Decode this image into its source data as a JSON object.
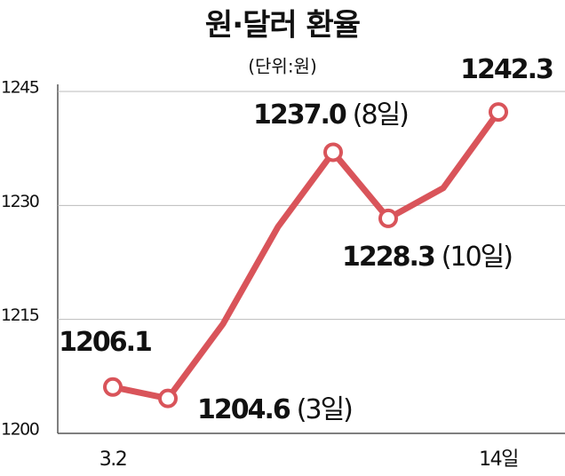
{
  "chart_data": {
    "type": "line",
    "title": "원·달러 환율",
    "subtitle": "(단위:원)",
    "categories": [
      "3.2",
      null,
      null,
      null,
      null,
      null,
      null,
      "14일"
    ],
    "series": [
      {
        "name": "원·달러 환율",
        "color": "#d9545a",
        "values": [
          1206.1,
          1204.6,
          1214.4,
          1227.2,
          1237.0,
          1228.3,
          1232.3,
          1242.3
        ],
        "value_labels": [
          "1206.1",
          "1204.6",
          null,
          null,
          "1237.0",
          "1228.3",
          null,
          "1242.3"
        ],
        "value_notes": [
          null,
          "(3일)",
          null,
          null,
          "(8일)",
          "(10일)",
          null,
          null
        ]
      }
    ],
    "ylim": [
      1200,
      1245
    ],
    "yticks": [
      1200,
      1215,
      1230,
      1245
    ],
    "grid": true
  }
}
